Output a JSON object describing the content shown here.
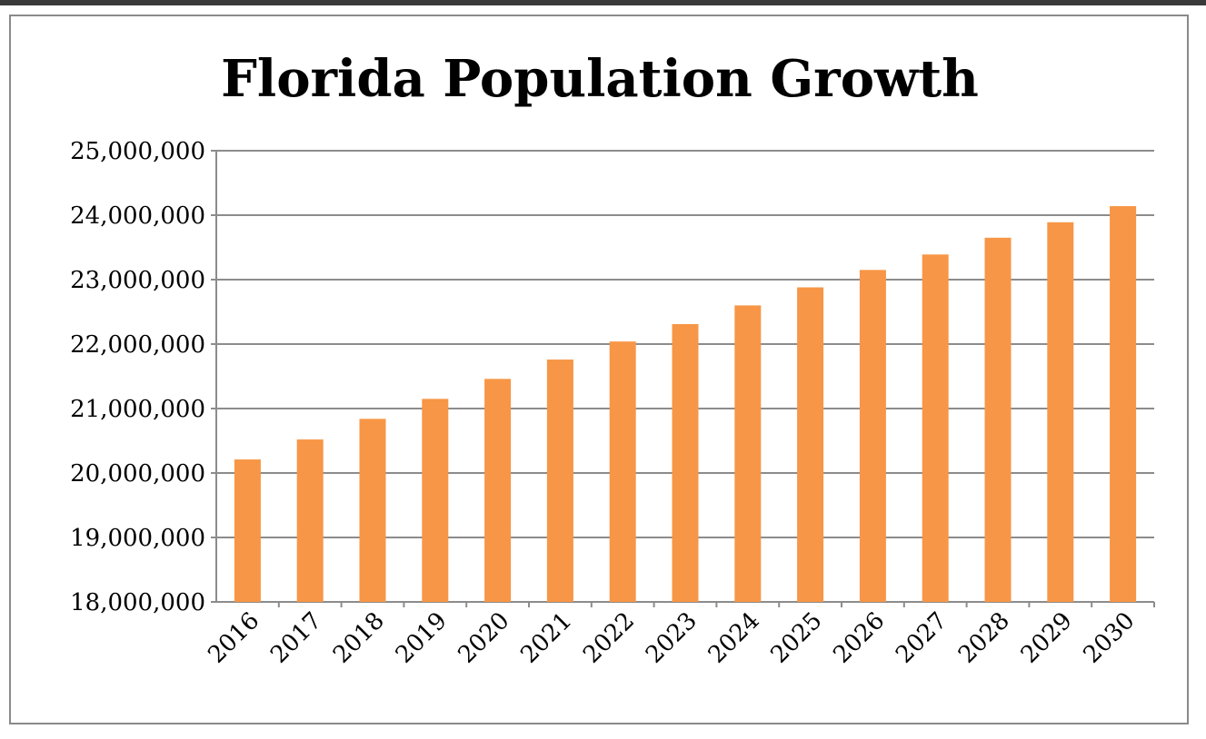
{
  "chart_data": {
    "type": "bar",
    "title": "Florida Population Growth",
    "xlabel": "",
    "ylabel": "",
    "categories": [
      "2016",
      "2017",
      "2018",
      "2019",
      "2020",
      "2021",
      "2022",
      "2023",
      "2024",
      "2025",
      "2026",
      "2027",
      "2028",
      "2029",
      "2030"
    ],
    "values": [
      20210000,
      20520000,
      20840000,
      21150000,
      21460000,
      21760000,
      22040000,
      22310000,
      22600000,
      22880000,
      23150000,
      23390000,
      23650000,
      23890000,
      24140000
    ],
    "ylim": [
      18000000,
      25000000
    ],
    "yticks": [
      18000000,
      19000000,
      20000000,
      21000000,
      22000000,
      23000000,
      24000000,
      25000000
    ],
    "ytick_labels": [
      "18,000,000",
      "19,000,000",
      "20,000,000",
      "21,000,000",
      "22,000,000",
      "23,000,000",
      "24,000,000",
      "25,000,000"
    ],
    "grid": true,
    "legend": "none",
    "colors": {
      "bar": "#F79646",
      "grid": "#8c8c8c"
    }
  }
}
